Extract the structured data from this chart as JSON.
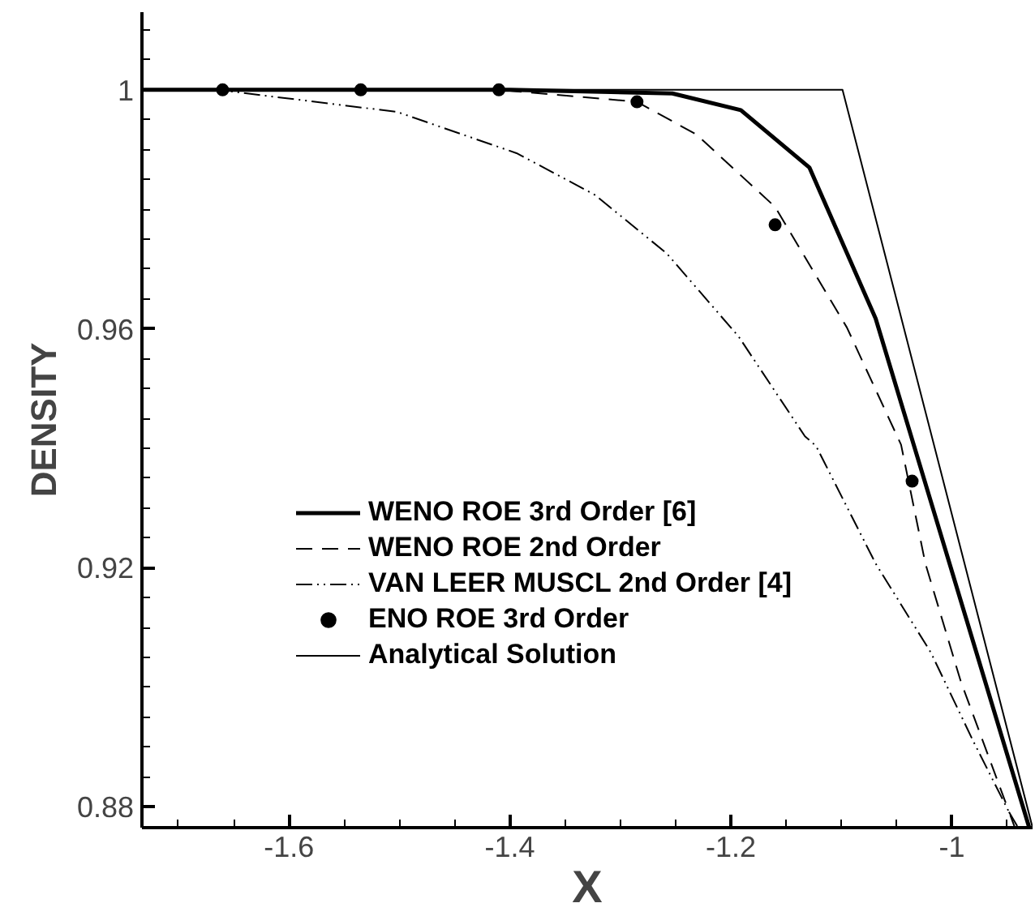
{
  "chart_data": {
    "type": "line",
    "xlabel": "X",
    "ylabel": "DENSITY",
    "xlim": [
      -1.733,
      -0.927
    ],
    "ylim": [
      0.8765,
      1.013
    ],
    "xticks": [
      {
        "value": -1.7,
        "label": null
      },
      {
        "value": -1.65,
        "label": null
      },
      -1.6,
      {
        "value": -1.55,
        "label": null
      },
      {
        "value": -1.5,
        "label": null
      },
      {
        "value": -1.45,
        "label": null
      },
      -1.4,
      {
        "value": -1.35,
        "label": null
      },
      {
        "value": -1.3,
        "label": null
      },
      {
        "value": -1.25,
        "label": null
      },
      -1.2,
      {
        "value": -1.15,
        "label": null
      },
      {
        "value": -1.1,
        "label": null
      },
      {
        "value": -1.05,
        "label": null
      },
      -1,
      {
        "value": -0.95,
        "label": null
      }
    ],
    "yticks": [
      0.88,
      {
        "value": 0.885,
        "label": null
      },
      {
        "value": 0.89,
        "label": null
      },
      {
        "value": 0.895,
        "label": null
      },
      {
        "value": 0.9,
        "label": null
      },
      {
        "value": 0.905,
        "label": null
      },
      {
        "value": 0.91,
        "label": null
      },
      {
        "value": 0.915,
        "label": null
      },
      0.92,
      {
        "value": 0.925,
        "label": null
      },
      {
        "value": 0.93,
        "label": null
      },
      {
        "value": 0.935,
        "label": null
      },
      {
        "value": 0.94,
        "label": null
      },
      {
        "value": 0.945,
        "label": null
      },
      {
        "value": 0.95,
        "label": null
      },
      {
        "value": 0.955,
        "label": null
      },
      0.96,
      {
        "value": 0.965,
        "label": null
      },
      {
        "value": 0.97,
        "label": null
      },
      {
        "value": 0.975,
        "label": null
      },
      {
        "value": 0.98,
        "label": null
      },
      {
        "value": 0.985,
        "label": null
      },
      {
        "value": 0.99,
        "label": null
      },
      {
        "value": 0.995,
        "label": null
      },
      1,
      {
        "value": 1.005,
        "label": null
      },
      {
        "value": 1.01,
        "label": null
      }
    ],
    "grid": false,
    "legend": "bottom left",
    "series": [
      {
        "name": "WENO ROE 3rd Order [6]",
        "color": "#000000",
        "line_style": "solid",
        "marker": "none",
        "x": [
          -1.733,
          -1.4,
          -1.253,
          -1.191,
          -1.129,
          -1.069,
          -0.93
        ],
        "values": [
          1,
          1,
          0.9994,
          0.9966,
          0.987,
          0.9617,
          0.8765
        ]
      },
      {
        "name": "WENO ROE 2nd Order",
        "color": "#000000",
        "line_style": "dashed",
        "marker": "none",
        "x": [
          -1.733,
          -1.41,
          -1.285,
          -1.231,
          -1.16,
          -1.095,
          -1.046,
          -1.024,
          -0.992,
          -0.948,
          -0.94
        ],
        "values": [
          1,
          1,
          0.998,
          0.9925,
          0.9804,
          0.9602,
          0.9406,
          0.9207,
          0.901,
          0.879,
          0.8765
        ]
      },
      {
        "name": "VAN LEER MUSCL 2nd Order [4]",
        "color": "#000000",
        "line_style": "dashdot",
        "marker": "none",
        "x": [
          -1.733,
          -1.664,
          -1.502,
          -1.394,
          -1.323,
          -1.258,
          -1.193,
          -1.133,
          -1.123,
          -1.069,
          -1.019,
          -0.981,
          -0.948,
          -0.943
        ],
        "values": [
          1,
          1,
          0.9963,
          0.9894,
          0.9824,
          0.9726,
          0.9587,
          0.942,
          0.9404,
          0.9207,
          0.9058,
          0.8911,
          0.879,
          0.8765
        ]
      },
      {
        "name": "ENO ROE 3rd Order",
        "type": "scatter",
        "color": "#000000",
        "marker": "circle",
        "x": [
          -1.66,
          -1.535,
          -1.41,
          -1.285,
          -1.16,
          -1.036
        ],
        "values": [
          1,
          1,
          1,
          0.998,
          0.9774,
          0.9345
        ]
      },
      {
        "name": "Analytical Solution",
        "color": "#000000",
        "line_style": "solid",
        "marker": "none",
        "x": [
          -1.733,
          -1.099,
          -0.927
        ],
        "values": [
          1,
          1,
          0.8765
        ]
      }
    ]
  }
}
